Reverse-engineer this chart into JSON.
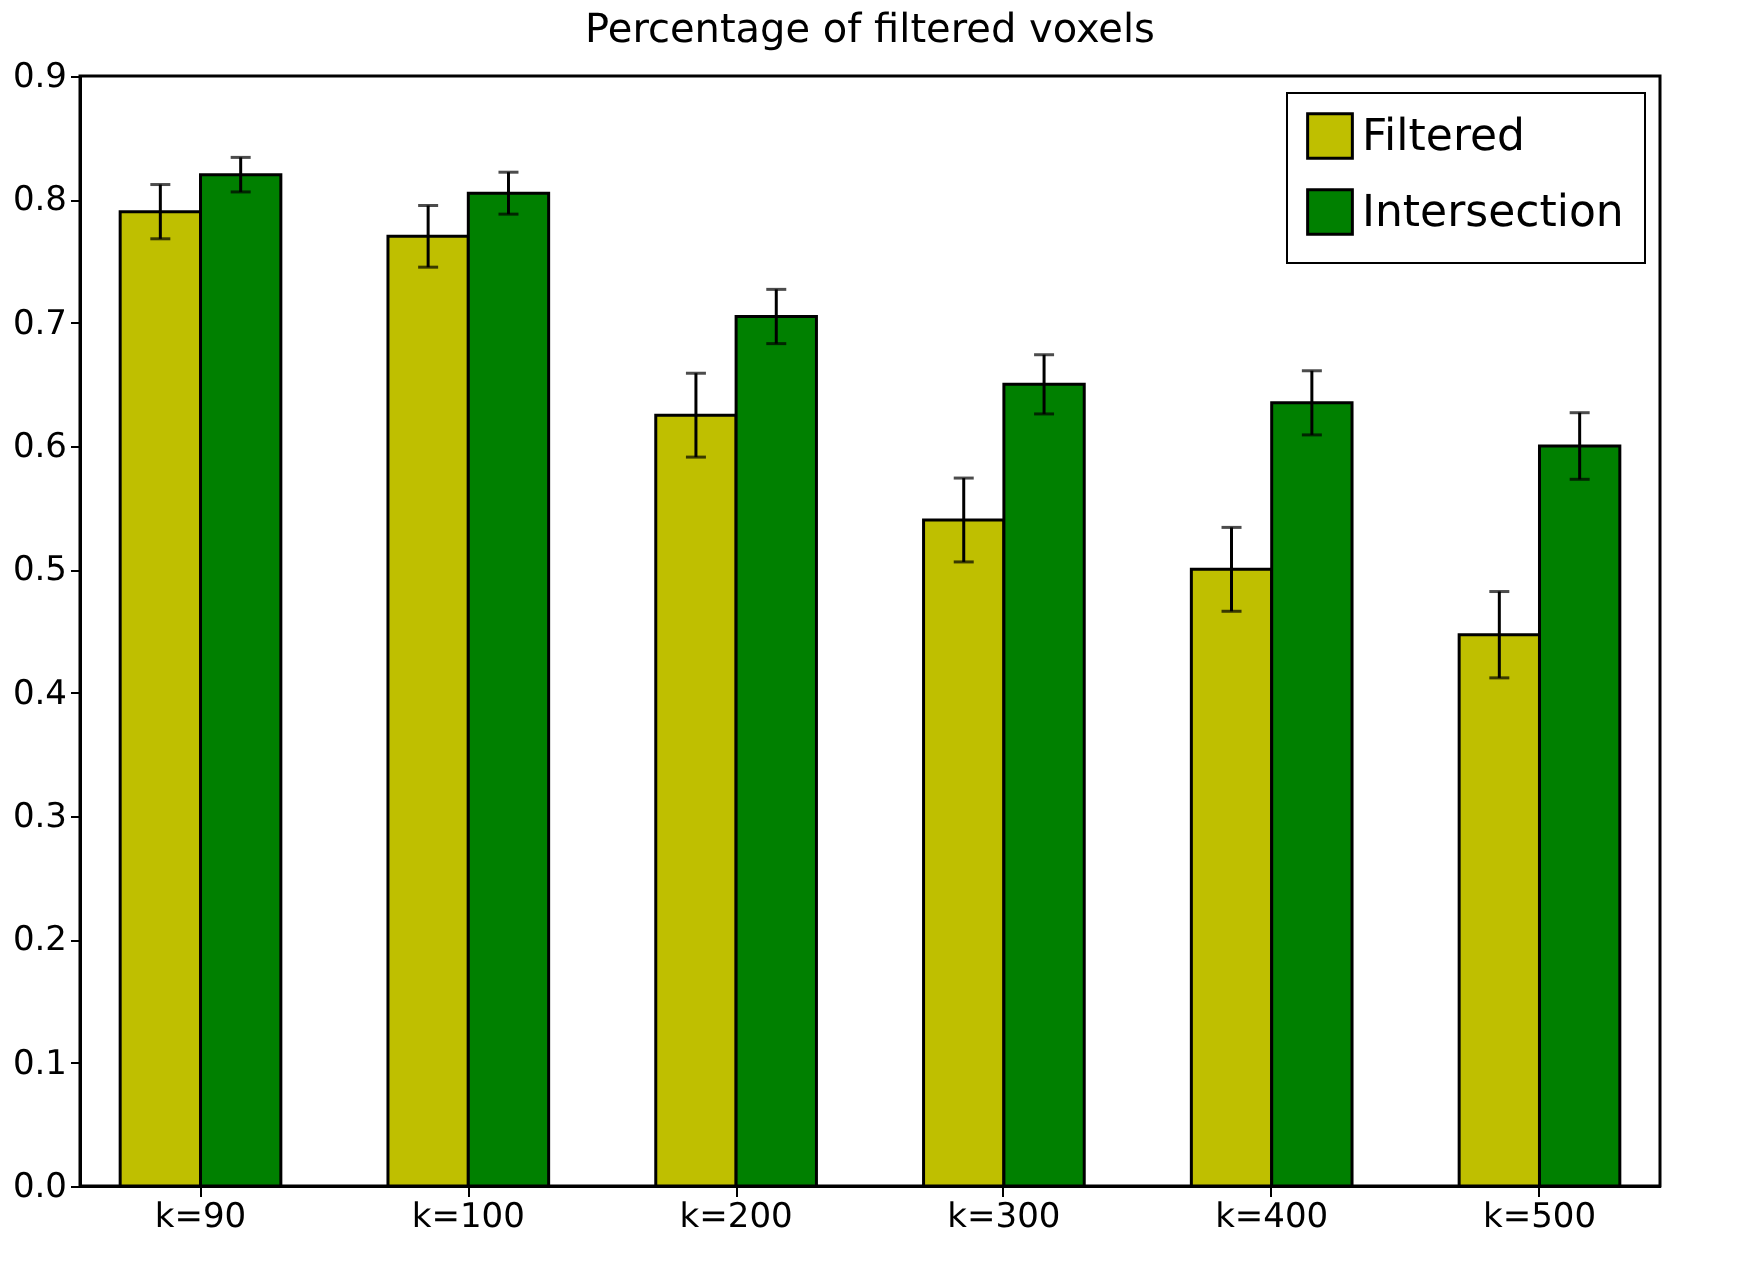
{
  "chart_data": {
    "type": "bar",
    "title": "Percentage of filtered voxels",
    "categories": [
      "k=90",
      "k=100",
      "k=200",
      "k=300",
      "k=400",
      "k=500"
    ],
    "series": [
      {
        "name": "Filtered",
        "color": "#bfbf00",
        "values": [
          0.79,
          0.77,
          0.625,
          0.54,
          0.5,
          0.447
        ],
        "errors": [
          0.022,
          0.025,
          0.034,
          0.034,
          0.034,
          0.035
        ]
      },
      {
        "name": "Intersection",
        "color": "#008000",
        "values": [
          0.82,
          0.805,
          0.705,
          0.65,
          0.635,
          0.6
        ],
        "errors": [
          0.014,
          0.017,
          0.022,
          0.024,
          0.026,
          0.027
        ]
      }
    ],
    "ylim": [
      0,
      0.9
    ],
    "yticks": [
      {
        "value": 0,
        "label": "0.0"
      },
      0.1,
      0.2,
      0.3,
      0.4,
      0.5,
      0.6,
      0.7,
      0.8,
      0.9
    ],
    "grid": false,
    "legend": "top right"
  }
}
